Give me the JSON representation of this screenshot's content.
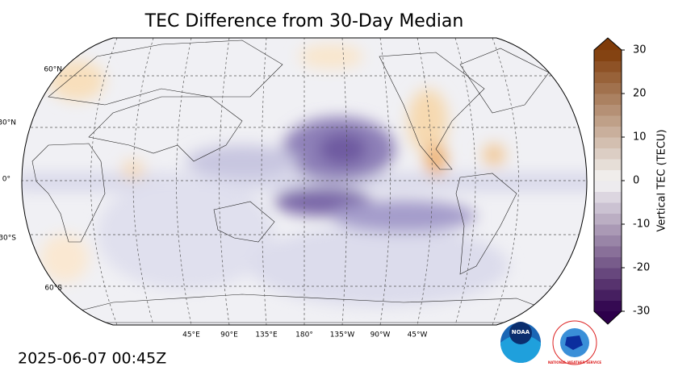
{
  "title": "TEC Difference from 30-Day Median",
  "map": {
    "lat_labels": [
      "60°N",
      "30°N",
      "0°",
      "30°S",
      "60°S"
    ],
    "lon_labels": [
      "45°E",
      "90°E",
      "135°E",
      "180°",
      "135°W",
      "90°W",
      "45°W"
    ]
  },
  "colorbar": {
    "label": "Vertical TEC (TECU)",
    "lim": [
      -30,
      30
    ],
    "ticks": [
      -30,
      -20,
      -10,
      0,
      10,
      20,
      30
    ]
  },
  "timestamp": "2025-06-07 00:45Z",
  "logos": {
    "noaa": "NOAA",
    "nws": "NATIONAL WEATHER SERVICE"
  }
}
